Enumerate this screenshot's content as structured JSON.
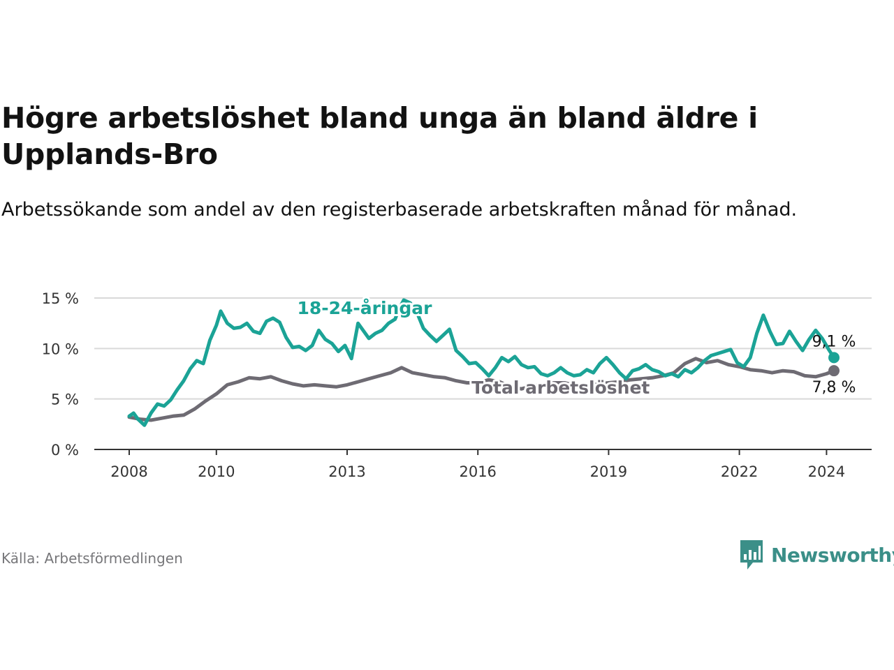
{
  "title": "Högre arbetslöshet bland unga än bland äldre i Upplands-Bro",
  "subtitle": "Arbetssökande som andel av den registerbaserade arbetskraften månad för månad.",
  "source": "Källa: Arbetsförmedlingen",
  "brand": "Newsworthy",
  "colors": {
    "youth": "#1ba396",
    "total": "#6e6b73",
    "grid": "#d9d9d9",
    "axis": "#333333",
    "brand": "#3b8f88"
  },
  "chart_data": {
    "type": "line",
    "title": "Högre arbetslöshet bland unga än bland äldre i Upplands-Bro",
    "xlabel": "",
    "ylabel": "",
    "ylim": [
      0,
      15
    ],
    "xlim": [
      2008.0,
      2024.25
    ],
    "y_ticks": [
      {
        "value": 0,
        "label": "0 %"
      },
      {
        "value": 5,
        "label": "5 %"
      },
      {
        "value": 10,
        "label": "10 %"
      },
      {
        "value": 15,
        "label": "15 %"
      }
    ],
    "x_ticks": [
      {
        "value": 2008,
        "label": "2008"
      },
      {
        "value": 2010,
        "label": "2010"
      },
      {
        "value": 2013,
        "label": "2013"
      },
      {
        "value": 2016,
        "label": "2016"
      },
      {
        "value": 2019,
        "label": "2019"
      },
      {
        "value": 2022,
        "label": "2022"
      },
      {
        "value": 2024,
        "label": "2024"
      }
    ],
    "grid": true,
    "series": [
      {
        "name": "Total arbetslöshet",
        "label": "Total arbetslöshet",
        "color_key": "total",
        "end_label": "7,8 %",
        "points": [
          [
            2008.0,
            3.2
          ],
          [
            2008.25,
            3.0
          ],
          [
            2008.5,
            2.9
          ],
          [
            2008.75,
            3.1
          ],
          [
            2009.0,
            3.3
          ],
          [
            2009.25,
            3.4
          ],
          [
            2009.5,
            4.0
          ],
          [
            2009.75,
            4.8
          ],
          [
            2010.0,
            5.5
          ],
          [
            2010.25,
            6.4
          ],
          [
            2010.5,
            6.7
          ],
          [
            2010.75,
            7.1
          ],
          [
            2011.0,
            7.0
          ],
          [
            2011.25,
            7.2
          ],
          [
            2011.5,
            6.8
          ],
          [
            2011.75,
            6.5
          ],
          [
            2012.0,
            6.3
          ],
          [
            2012.25,
            6.4
          ],
          [
            2012.5,
            6.3
          ],
          [
            2012.75,
            6.2
          ],
          [
            2013.0,
            6.4
          ],
          [
            2013.25,
            6.7
          ],
          [
            2013.5,
            7.0
          ],
          [
            2013.75,
            7.3
          ],
          [
            2014.0,
            7.6
          ],
          [
            2014.25,
            8.1
          ],
          [
            2014.5,
            7.6
          ],
          [
            2014.75,
            7.4
          ],
          [
            2015.0,
            7.2
          ],
          [
            2015.25,
            7.1
          ],
          [
            2015.5,
            6.8
          ],
          [
            2015.75,
            6.6
          ],
          [
            2016.0,
            6.6
          ],
          [
            2016.25,
            6.9
          ],
          [
            2016.5,
            6.7
          ],
          [
            2016.75,
            6.2
          ],
          [
            2017.0,
            6.0
          ],
          [
            2017.25,
            6.3
          ],
          [
            2017.5,
            6.4
          ],
          [
            2017.75,
            6.6
          ],
          [
            2018.0,
            6.6
          ],
          [
            2018.25,
            6.3
          ],
          [
            2018.5,
            6.2
          ],
          [
            2018.75,
            6.5
          ],
          [
            2019.0,
            6.6
          ],
          [
            2019.25,
            6.7
          ],
          [
            2019.5,
            6.9
          ],
          [
            2019.75,
            7.0
          ],
          [
            2020.0,
            7.1
          ],
          [
            2020.25,
            7.3
          ],
          [
            2020.5,
            7.6
          ],
          [
            2020.75,
            8.5
          ],
          [
            2021.0,
            9.0
          ],
          [
            2021.25,
            8.6
          ],
          [
            2021.5,
            8.8
          ],
          [
            2021.75,
            8.4
          ],
          [
            2022.0,
            8.2
          ],
          [
            2022.25,
            7.9
          ],
          [
            2022.5,
            7.8
          ],
          [
            2022.75,
            7.6
          ],
          [
            2023.0,
            7.8
          ],
          [
            2023.25,
            7.7
          ],
          [
            2023.5,
            7.3
          ],
          [
            2023.75,
            7.2
          ],
          [
            2024.0,
            7.5
          ],
          [
            2024.17,
            7.8
          ]
        ]
      },
      {
        "name": "18-24-åringar",
        "label": "18-24-åringar",
        "color_key": "youth",
        "end_label": "9,1 %",
        "points": [
          [
            2008.0,
            3.3
          ],
          [
            2008.1,
            3.6
          ],
          [
            2008.2,
            3.0
          ],
          [
            2008.35,
            2.4
          ],
          [
            2008.5,
            3.6
          ],
          [
            2008.65,
            4.5
          ],
          [
            2008.8,
            4.3
          ],
          [
            2008.95,
            4.9
          ],
          [
            2009.1,
            5.9
          ],
          [
            2009.25,
            6.8
          ],
          [
            2009.4,
            8.0
          ],
          [
            2009.55,
            8.8
          ],
          [
            2009.7,
            8.5
          ],
          [
            2009.85,
            10.8
          ],
          [
            2010.0,
            12.3
          ],
          [
            2010.1,
            13.7
          ],
          [
            2010.25,
            12.5
          ],
          [
            2010.4,
            12.0
          ],
          [
            2010.55,
            12.1
          ],
          [
            2010.7,
            12.5
          ],
          [
            2010.85,
            11.7
          ],
          [
            2011.0,
            11.5
          ],
          [
            2011.15,
            12.7
          ],
          [
            2011.3,
            13.0
          ],
          [
            2011.45,
            12.6
          ],
          [
            2011.6,
            11.1
          ],
          [
            2011.75,
            10.1
          ],
          [
            2011.9,
            10.2
          ],
          [
            2012.05,
            9.8
          ],
          [
            2012.2,
            10.3
          ],
          [
            2012.35,
            11.8
          ],
          [
            2012.5,
            10.9
          ],
          [
            2012.65,
            10.5
          ],
          [
            2012.8,
            9.7
          ],
          [
            2012.95,
            10.3
          ],
          [
            2013.1,
            9.0
          ],
          [
            2013.25,
            12.5
          ],
          [
            2013.35,
            11.9
          ],
          [
            2013.5,
            11.0
          ],
          [
            2013.65,
            11.5
          ],
          [
            2013.8,
            11.8
          ],
          [
            2013.95,
            12.5
          ],
          [
            2014.1,
            12.9
          ],
          [
            2014.2,
            14.0
          ],
          [
            2014.3,
            14.8
          ],
          [
            2014.45,
            14.5
          ],
          [
            2014.6,
            13.6
          ],
          [
            2014.75,
            12.0
          ],
          [
            2014.9,
            11.3
          ],
          [
            2015.05,
            10.7
          ],
          [
            2015.2,
            11.3
          ],
          [
            2015.35,
            11.9
          ],
          [
            2015.5,
            9.8
          ],
          [
            2015.65,
            9.2
          ],
          [
            2015.8,
            8.5
          ],
          [
            2015.95,
            8.6
          ],
          [
            2016.1,
            8.0
          ],
          [
            2016.25,
            7.3
          ],
          [
            2016.4,
            8.1
          ],
          [
            2016.55,
            9.1
          ],
          [
            2016.7,
            8.7
          ],
          [
            2016.85,
            9.2
          ],
          [
            2017.0,
            8.4
          ],
          [
            2017.15,
            8.1
          ],
          [
            2017.3,
            8.2
          ],
          [
            2017.45,
            7.5
          ],
          [
            2017.6,
            7.3
          ],
          [
            2017.75,
            7.6
          ],
          [
            2017.9,
            8.1
          ],
          [
            2018.05,
            7.6
          ],
          [
            2018.2,
            7.3
          ],
          [
            2018.35,
            7.4
          ],
          [
            2018.5,
            7.9
          ],
          [
            2018.65,
            7.6
          ],
          [
            2018.8,
            8.5
          ],
          [
            2018.95,
            9.1
          ],
          [
            2019.1,
            8.4
          ],
          [
            2019.25,
            7.6
          ],
          [
            2019.4,
            7.0
          ],
          [
            2019.55,
            7.8
          ],
          [
            2019.7,
            8.0
          ],
          [
            2019.85,
            8.4
          ],
          [
            2020.0,
            7.9
          ],
          [
            2020.15,
            7.7
          ],
          [
            2020.3,
            7.3
          ],
          [
            2020.45,
            7.5
          ],
          [
            2020.6,
            7.2
          ],
          [
            2020.75,
            7.9
          ],
          [
            2020.9,
            7.6
          ],
          [
            2021.05,
            8.1
          ],
          [
            2021.2,
            8.8
          ],
          [
            2021.35,
            9.3
          ],
          [
            2021.5,
            9.5
          ],
          [
            2021.65,
            9.7
          ],
          [
            2021.8,
            9.9
          ],
          [
            2021.95,
            8.6
          ],
          [
            2022.1,
            8.2
          ],
          [
            2022.25,
            9.1
          ],
          [
            2022.4,
            11.5
          ],
          [
            2022.55,
            13.3
          ],
          [
            2022.7,
            11.7
          ],
          [
            2022.85,
            10.4
          ],
          [
            2023.0,
            10.5
          ],
          [
            2023.15,
            11.7
          ],
          [
            2023.3,
            10.7
          ],
          [
            2023.45,
            9.8
          ],
          [
            2023.6,
            10.9
          ],
          [
            2023.75,
            11.8
          ],
          [
            2023.9,
            11.0
          ],
          [
            2024.05,
            9.9
          ],
          [
            2024.17,
            9.1
          ]
        ]
      }
    ]
  }
}
